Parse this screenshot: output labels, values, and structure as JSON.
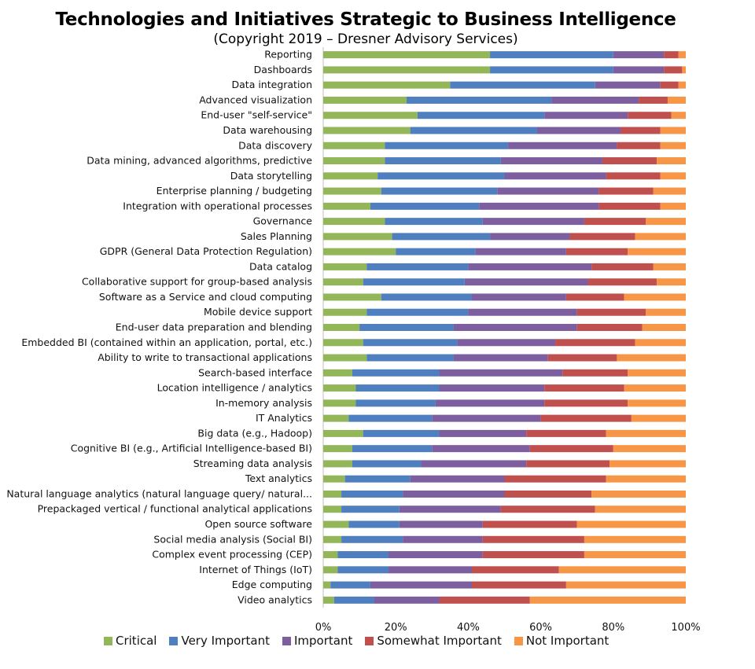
{
  "header": {
    "title": "Technologies and Initiatives Strategic to Business Intelligence",
    "subtitle": "(Copyright 2019 – Dresner Advisory Services)"
  },
  "colors": {
    "Critical": "#93b659",
    "Very Important": "#4f7fbe",
    "Important": "#7d5fa0",
    "Somewhat Important": "#c0504d",
    "Not Important": "#f79646"
  },
  "chart_data": {
    "type": "bar",
    "orientation": "horizontal",
    "stacked": true,
    "percent": true,
    "title": "Technologies and Initiatives Strategic to Business Intelligence",
    "subtitle": "(Copyright 2019 – Dresner Advisory Services)",
    "xlim": [
      0,
      100
    ],
    "x_ticks": [
      "0%",
      "20%",
      "40%",
      "60%",
      "80%",
      "100%"
    ],
    "legend_position": "bottom",
    "categories": [
      "Reporting",
      "Dashboards",
      "Data integration",
      "Advanced visualization",
      "End-user \"self-service\"",
      "Data warehousing",
      "Data discovery",
      "Data mining, advanced algorithms, predictive",
      "Data storytelling",
      "Enterprise planning / budgeting",
      "Integration with operational processes",
      "Governance",
      "Sales Planning",
      "GDPR (General Data Protection Regulation)",
      "Data catalog",
      "Collaborative support for group-based analysis",
      "Software as a Service and cloud computing",
      "Mobile device support",
      "End-user data preparation and blending",
      "Embedded BI (contained within an application, portal, etc.)",
      "Ability to write to transactional applications",
      "Search-based interface",
      "Location intelligence / analytics",
      "In-memory analysis",
      "IT Analytics",
      "Big data (e.g., Hadoop)",
      "Cognitive BI (e.g., Artificial Intelligence-based BI)",
      "Streaming data analysis",
      "Text analytics",
      "Natural language analytics (natural language query/ natural...",
      "Prepackaged vertical / functional analytical applications",
      "Open source software",
      "Social media analysis (Social BI)",
      "Complex event processing (CEP)",
      "Internet of Things (IoT)",
      "Edge computing",
      "Video analytics"
    ],
    "series": [
      {
        "name": "Critical",
        "values": [
          46,
          46,
          35,
          23,
          26,
          24,
          17,
          17,
          15,
          16,
          13,
          17,
          19,
          20,
          12,
          11,
          16,
          12,
          10,
          11,
          12,
          8,
          9,
          9,
          7,
          11,
          8,
          8,
          6,
          5,
          5,
          7,
          5,
          4,
          4,
          2,
          3
        ]
      },
      {
        "name": "Very Important",
        "values": [
          34,
          34,
          40,
          40,
          35,
          35,
          34,
          32,
          35,
          32,
          30,
          27,
          27,
          22,
          28,
          28,
          25,
          28,
          26,
          26,
          24,
          24,
          23,
          22,
          23,
          21,
          22,
          19,
          18,
          17,
          16,
          14,
          17,
          14,
          14,
          11,
          11
        ]
      },
      {
        "name": "Important",
        "values": [
          14,
          14,
          18,
          24,
          23,
          23,
          30,
          28,
          28,
          28,
          33,
          28,
          22,
          25,
          34,
          34,
          26,
          30,
          34,
          27,
          26,
          34,
          29,
          30,
          30,
          24,
          27,
          29,
          26,
          28,
          28,
          23,
          22,
          26,
          23,
          28,
          18
        ]
      },
      {
        "name": "Somewhat Important",
        "values": [
          4,
          5,
          5,
          8,
          12,
          11,
          12,
          15,
          15,
          15,
          17,
          17,
          18,
          17,
          17,
          19,
          16,
          19,
          18,
          22,
          19,
          18,
          22,
          23,
          25,
          22,
          23,
          23,
          28,
          24,
          26,
          26,
          28,
          28,
          24,
          26,
          25
        ]
      },
      {
        "name": "Not Important",
        "values": [
          2,
          1,
          2,
          5,
          4,
          7,
          7,
          8,
          7,
          9,
          7,
          11,
          14,
          16,
          9,
          8,
          17,
          11,
          12,
          14,
          19,
          16,
          17,
          16,
          15,
          22,
          20,
          21,
          22,
          26,
          25,
          30,
          28,
          28,
          35,
          33,
          43
        ]
      }
    ]
  }
}
